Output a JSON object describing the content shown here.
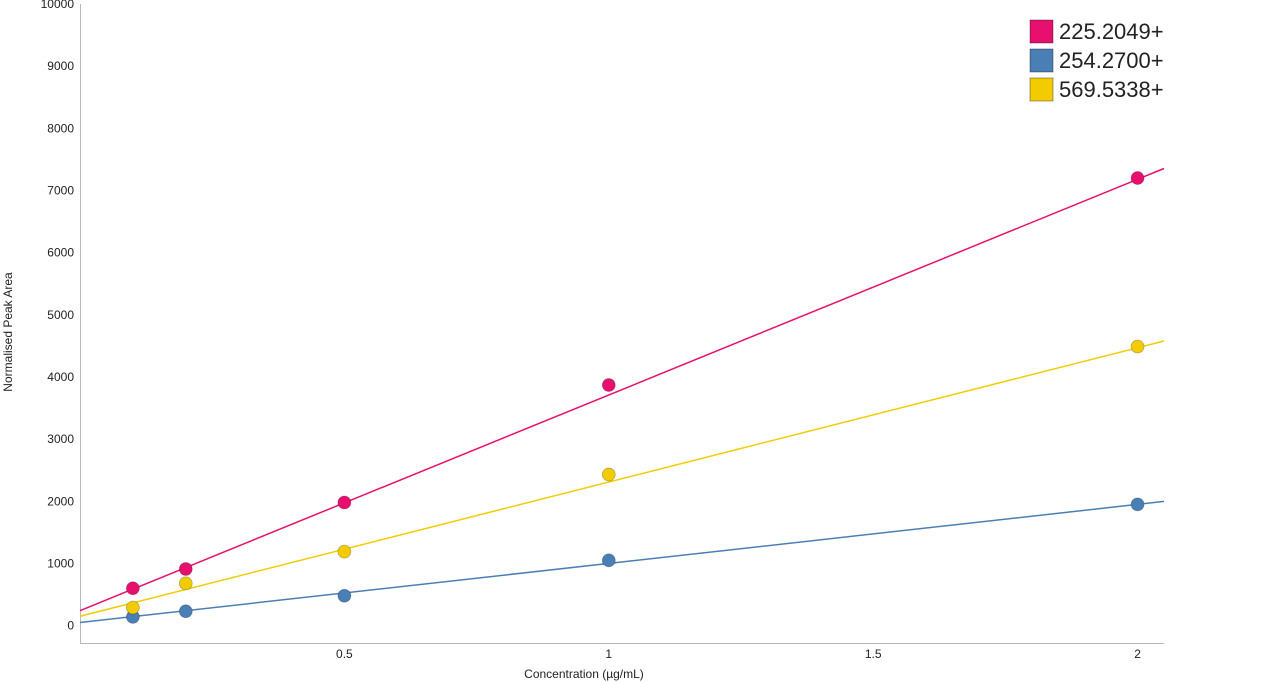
{
  "chart_data": {
    "type": "scatter",
    "title": "",
    "xlabel": "Concentration (µg/mL)",
    "ylabel": "Normalised Peak Area",
    "xlim": [
      0.0,
      2.05
    ],
    "ylim": [
      -280,
      10000
    ],
    "x_ticks": [
      {
        "value": 0.5,
        "label": "0.5"
      },
      {
        "value": 1,
        "label": "1"
      },
      {
        "value": 1.5,
        "label": "1.5"
      },
      {
        "value": 2,
        "label": "2"
      }
    ],
    "y_ticks": [
      {
        "value": 0,
        "label": "0"
      },
      {
        "value": 1000,
        "label": "1000"
      },
      {
        "value": 2000,
        "label": "2000"
      },
      {
        "value": 3000,
        "label": "3000"
      },
      {
        "value": 4000,
        "label": "4000"
      },
      {
        "value": 5000,
        "label": "5000"
      },
      {
        "value": 6000,
        "label": "6000"
      },
      {
        "value": 7000,
        "label": "7000"
      },
      {
        "value": 8000,
        "label": "8000"
      },
      {
        "value": 9000,
        "label": "9000"
      },
      {
        "value": 10000,
        "label": "10000"
      }
    ],
    "grid": false,
    "legend_position": "top-right",
    "series": [
      {
        "name": "225.2049+",
        "color": "#e8106e",
        "x": [
          0.1,
          0.2,
          0.5,
          1,
          2
        ],
        "y": [
          600,
          910,
          1980,
          3870,
          7200
        ],
        "fit": {
          "slope": 3470,
          "intercept": 240
        }
      },
      {
        "name": "254.2700+",
        "color": "#4a7fb5",
        "x": [
          0.1,
          0.2,
          0.5,
          1,
          2
        ],
        "y": [
          140,
          230,
          480,
          1050,
          1950
        ],
        "fit": {
          "slope": 950,
          "intercept": 50
        }
      },
      {
        "name": "569.5338+",
        "color": "#f2cc00",
        "x": [
          0.1,
          0.2,
          0.5,
          1,
          2
        ],
        "y": [
          290,
          680,
          1190,
          2430,
          4490
        ],
        "fit": {
          "slope": 2160,
          "intercept": 150
        }
      }
    ]
  }
}
